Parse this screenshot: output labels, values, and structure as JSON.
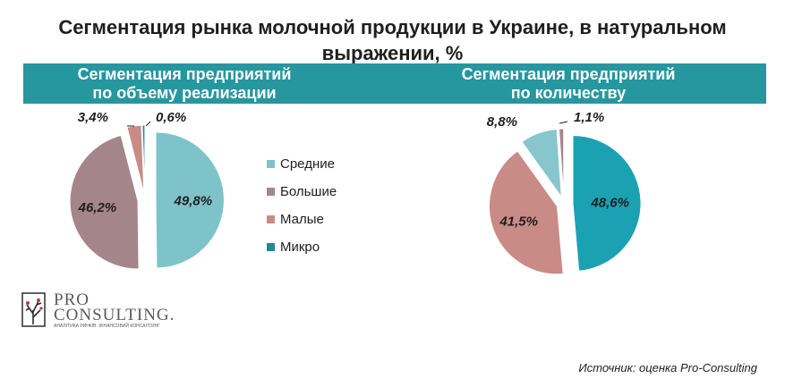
{
  "title": "Сегментация рынка молочной продукции в Украине, в натуральном\nвыражении, %",
  "colors": {
    "band": "#26979f",
    "Средние": "#7ec3ca",
    "Большие": "#a4868a",
    "Малые": "#c98b86",
    "Микро": "#1d8a94",
    "right_large_segment": "#1aa2b3",
    "right_medium_segment": "#c98b86",
    "right_small_segment": "#86c6cc",
    "right_tiny_segment": "#a4868a"
  },
  "legend": [
    "Средние",
    "Большие",
    "Малые",
    "Микро"
  ],
  "logo": {
    "line1": "PRO",
    "line2": "CONSULTING.",
    "tagline": "АНАЛІТИКА РИНКІВ. ФІНАНСОВИЙ КОНСАЛТИНГ",
    "mark_icon": "tree-logo-icon"
  },
  "source": "Источник: оценка Pro-Consulting",
  "chart_data": [
    {
      "type": "pie",
      "title": "Сегментация предприятий\nпо объему реализации",
      "categories": [
        "Средние",
        "Большие",
        "Малые",
        "Микро"
      ],
      "values": [
        49.8,
        46.2,
        3.4,
        0.6
      ],
      "labels": [
        "49,8%",
        "46,2%",
        "3,4%",
        "0,6%"
      ],
      "legend_position": "right"
    },
    {
      "type": "pie",
      "title": "Сегментация предприятий\nпо количеству",
      "values": [
        48.6,
        41.5,
        8.8,
        1.1
      ],
      "labels": [
        "48,6%",
        "41,5%",
        "8,8%",
        "1,1%"
      ]
    }
  ]
}
